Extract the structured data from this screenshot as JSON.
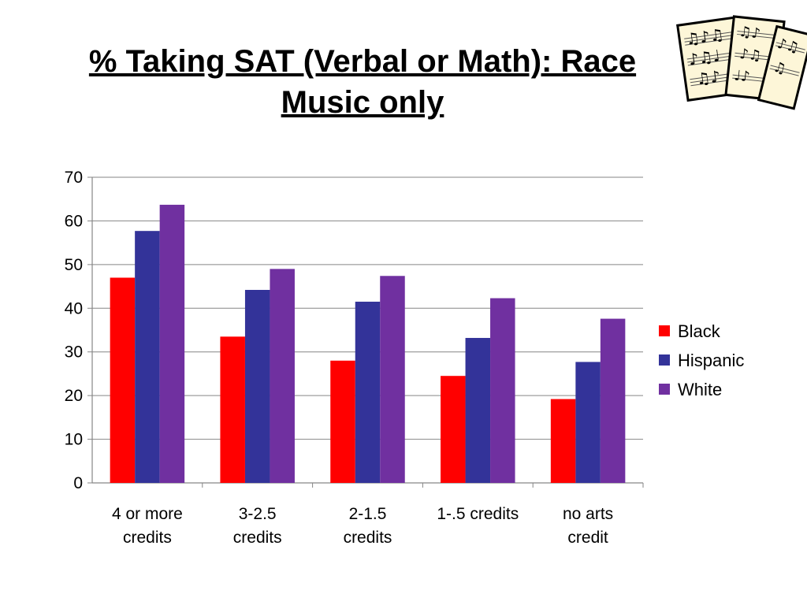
{
  "slide": {
    "title_line1": "% Taking SAT (Verbal or Math): Race",
    "title_line2": "Music only"
  },
  "clipart": {
    "icon": "sheet-music-icon"
  },
  "chart_data": {
    "type": "bar",
    "categories": [
      [
        "4 or more",
        "credits"
      ],
      [
        "3-2.5",
        "credits"
      ],
      [
        "2-1.5",
        "credits"
      ],
      [
        "1-.5 credits"
      ],
      [
        "no arts",
        "credit"
      ]
    ],
    "series": [
      {
        "name": "Black",
        "color": "#ff0000",
        "values": [
          47,
          33.5,
          28,
          24.5,
          19.2
        ]
      },
      {
        "name": "Hispanic",
        "color": "#333399",
        "values": [
          57.7,
          44.2,
          41.5,
          33.2,
          27.7
        ]
      },
      {
        "name": "White",
        "color": "#7030a0",
        "values": [
          63.7,
          49,
          47.4,
          42.3,
          37.6
        ]
      }
    ],
    "ylim": [
      0,
      70
    ],
    "yticks": [
      0,
      10,
      20,
      30,
      40,
      50,
      60,
      70
    ],
    "grid": true,
    "legend": "right"
  }
}
